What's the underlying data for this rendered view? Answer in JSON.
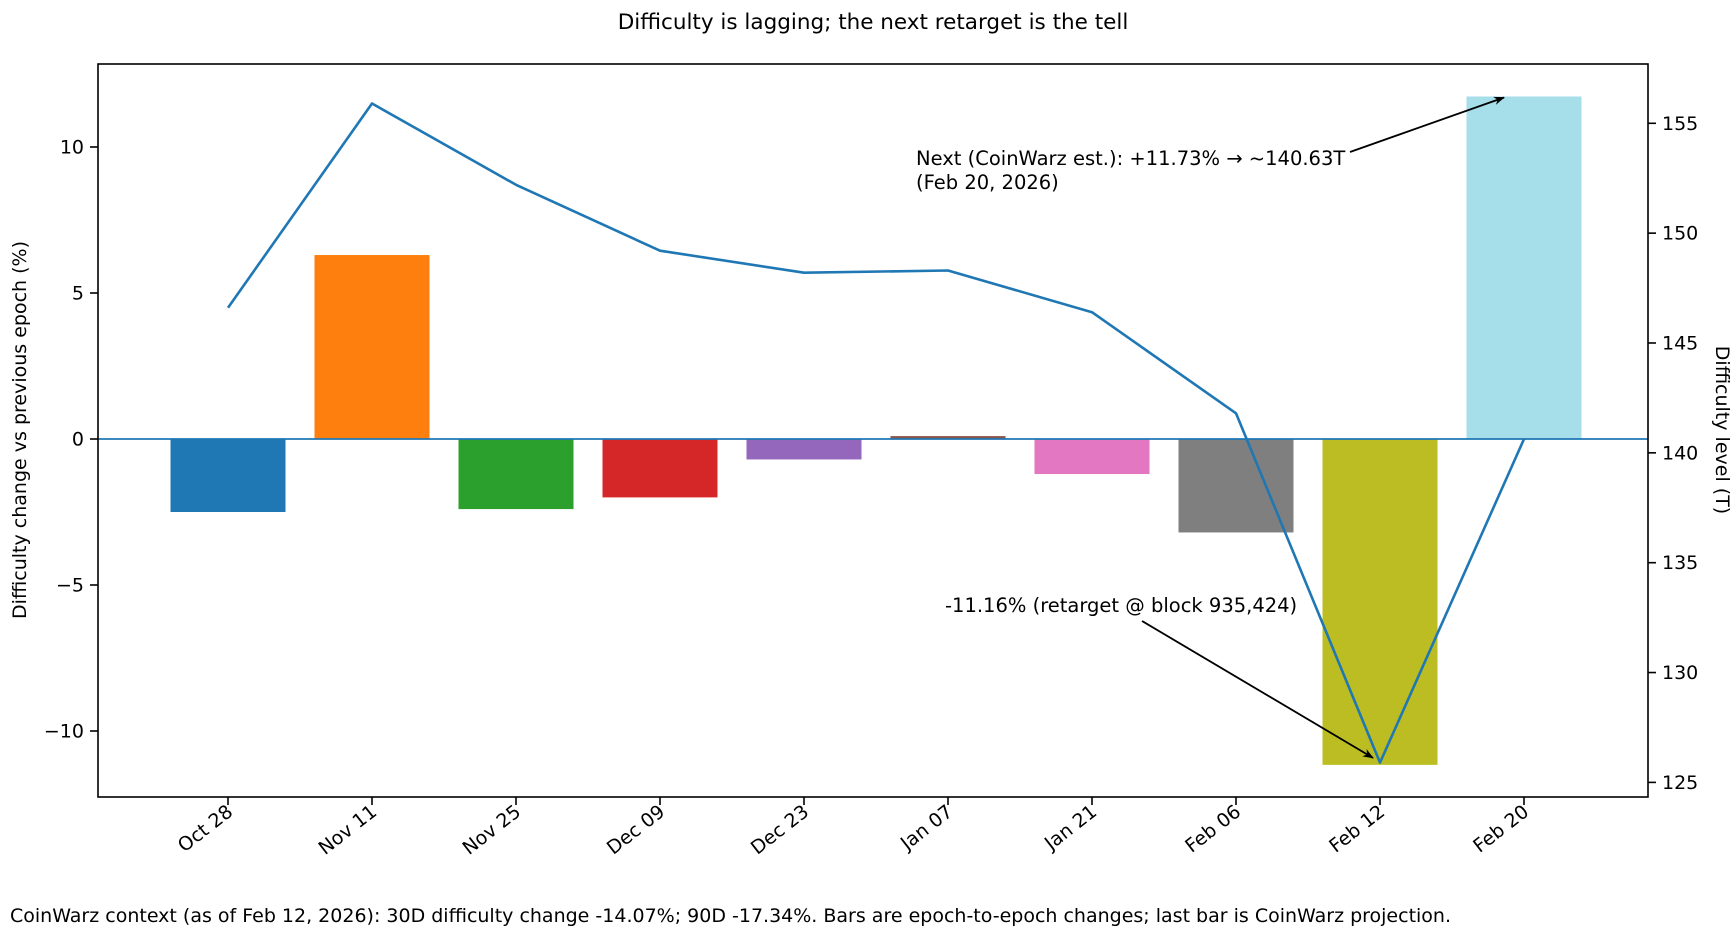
{
  "title": "Difficulty is lagging; the next retarget is the tell",
  "caption": "CoinWarz context (as of Feb 12, 2026): 30D difficulty change -14.07%; 90D -17.34%. Bars are epoch-to-epoch changes; last bar is CoinWarz projection.",
  "chart_data": {
    "type": "bar",
    "subtype": "dual-axis bar + line",
    "categories": [
      "Oct 28",
      "Nov 11",
      "Nov 25",
      "Dec 09",
      "Dec 23",
      "Jan 07",
      "Jan 21",
      "Feb 06",
      "Feb 12",
      "Feb 20"
    ],
    "series": [
      {
        "name": "Difficulty change vs previous epoch (%)",
        "type": "bar",
        "axis": "left",
        "values": [
          -2.5,
          6.3,
          -2.4,
          -2.0,
          -0.7,
          0.1,
          -1.2,
          -3.2,
          -11.16,
          11.73
        ],
        "colors": [
          "#1f77b4",
          "#ff7f0e",
          "#2ca02c",
          "#d62728",
          "#9467bd",
          "#8c564b",
          "#e377c2",
          "#7f7f7f",
          "#bcbd22",
          "#a6dfea"
        ]
      },
      {
        "name": "Difficulty level (T)",
        "type": "line",
        "axis": "right",
        "color": "#1f77b4",
        "values": [
          146.6,
          155.9,
          152.2,
          149.2,
          148.2,
          148.3,
          146.4,
          141.8,
          125.9,
          140.63
        ]
      }
    ],
    "axes": {
      "left": {
        "label": "Difficulty change vs previous epoch (%)",
        "ticks": [
          10,
          5,
          0,
          -5,
          -10
        ],
        "tick_labels": [
          "10",
          "5",
          "0",
          "−5",
          "−10"
        ],
        "range": [
          -12.3,
          12.85
        ]
      },
      "right": {
        "label": "Difficulty level (T)",
        "ticks": [
          155,
          150,
          145,
          140,
          135,
          130,
          125
        ],
        "tick_labels": [
          "155",
          "150",
          "145",
          "140",
          "135",
          "130",
          "125"
        ],
        "range": [
          124.3,
          157.7
        ]
      },
      "x": {
        "tick_rotation_deg": 38
      }
    },
    "zero_line": {
      "axis": "left",
      "value": 0,
      "color": "#1f77b4"
    },
    "grid": false,
    "legend": null,
    "annotations": [
      {
        "id": "next-estimate",
        "lines": [
          "Next (CoinWarz est.): +11.73% → ~140.63T",
          "(Feb 20, 2026)"
        ],
        "arrow_to": {
          "category": "Feb 20",
          "axis": "left",
          "value": 11.73
        }
      },
      {
        "id": "retarget-drop",
        "lines": [
          "-11.16% (retarget @ block 935,424)"
        ],
        "arrow_to": {
          "category": "Feb 12",
          "axis": "left",
          "value": -11.16
        }
      }
    ]
  }
}
